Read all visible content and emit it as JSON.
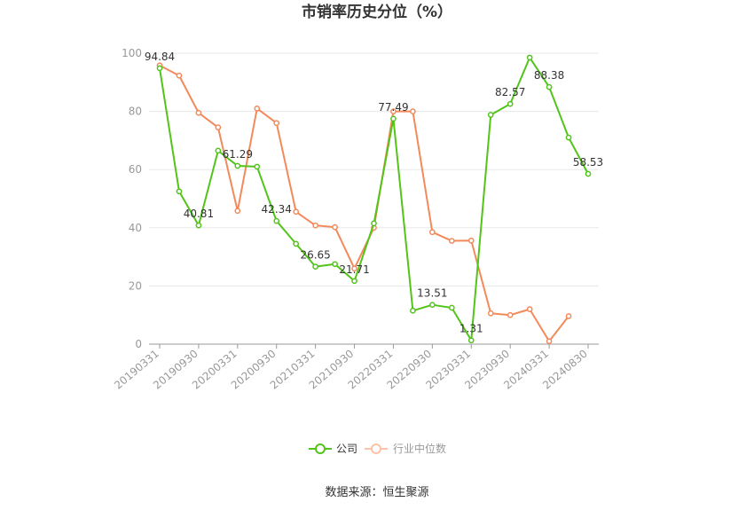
{
  "chart_data": {
    "type": "line",
    "title": "市销率历史分位（%）",
    "x": [
      "20190331",
      "20190630",
      "20190930",
      "20191231",
      "20200331",
      "20200630",
      "20200930",
      "20201231",
      "20210331",
      "20210630",
      "20210930",
      "20211231",
      "20220331",
      "20220630",
      "20220930",
      "20221231",
      "20230331",
      "20230630",
      "20230930",
      "20231231",
      "20240331",
      "20240630",
      "20240830"
    ],
    "x_tick_labels": [
      "20190331",
      "20190930",
      "20200331",
      "20200930",
      "20210331",
      "20210930",
      "20220331",
      "20220930",
      "20230331",
      "20230930",
      "20240331",
      "20240830"
    ],
    "ylim": [
      0,
      100
    ],
    "y_ticks": [
      0,
      20,
      40,
      60,
      80,
      100
    ],
    "grid": true,
    "legend_position": "bottom",
    "series": [
      {
        "name": "公司",
        "color": "#52c41a",
        "values": [
          94.84,
          52.5,
          40.81,
          66.5,
          61.29,
          61.0,
          42.34,
          34.5,
          26.65,
          27.5,
          21.71,
          41.5,
          77.49,
          11.5,
          13.51,
          12.5,
          1.31,
          78.8,
          82.57,
          98.5,
          88.38,
          71.0,
          58.53
        ],
        "labels": [
          "94.84",
          "",
          "40.81",
          "",
          "61.29",
          "",
          "42.34",
          "",
          "26.65",
          "",
          "21.71",
          "",
          "77.49",
          "",
          "13.51",
          "",
          "1.31",
          "",
          "82.57",
          "",
          "88.38",
          "",
          "58.53"
        ]
      },
      {
        "name": "行业中位数",
        "color": "#f4895a",
        "values": [
          95.8,
          92.3,
          79.5,
          74.5,
          45.8,
          81.0,
          76.0,
          45.5,
          40.8,
          40.2,
          26.0,
          40.0,
          80.0,
          80.0,
          38.5,
          35.5,
          35.6,
          10.6,
          10.0,
          12.0,
          1.0,
          9.6,
          null
        ]
      }
    ]
  },
  "legend": {
    "company_label": "公司",
    "industry_label": "行业中位数"
  },
  "source_text": "数据来源：恒生聚源"
}
